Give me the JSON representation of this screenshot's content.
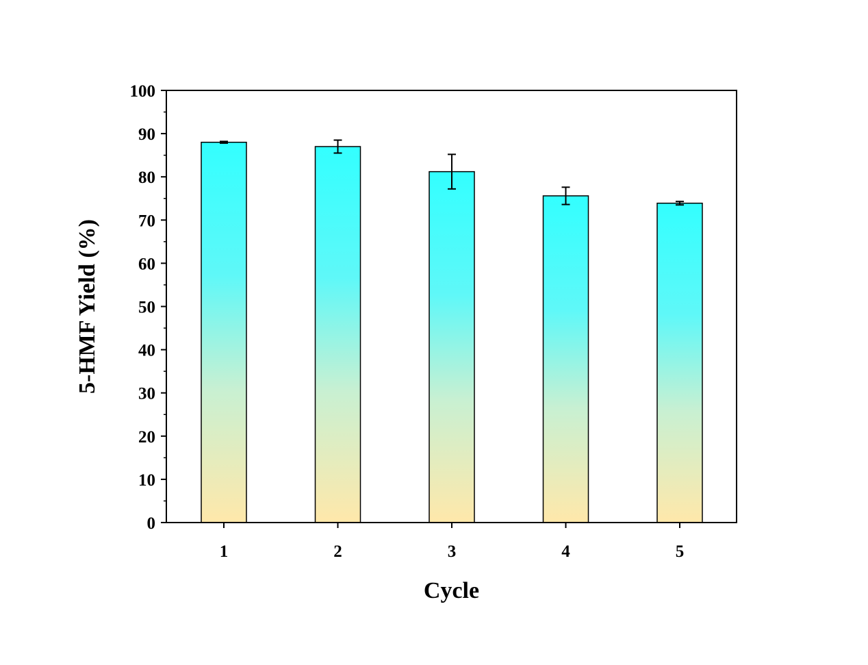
{
  "chart_data": {
    "type": "bar",
    "title": "",
    "xlabel": "Cycle",
    "ylabel": "5-HMF Yield (%)",
    "categories": [
      "1",
      "2",
      "3",
      "4",
      "5"
    ],
    "values": [
      88.0,
      87.0,
      81.2,
      75.6,
      73.9
    ],
    "errors": [
      0.2,
      1.5,
      4.0,
      2.0,
      0.4
    ],
    "ylim": [
      0,
      100
    ],
    "yticks": [
      0,
      10,
      20,
      30,
      40,
      50,
      60,
      70,
      80,
      90,
      100
    ],
    "ytick_labels": [
      "0",
      "10",
      "20",
      "30",
      "40",
      "50",
      "60",
      "70",
      "80",
      "90",
      "100"
    ],
    "grid": false,
    "colors": {
      "bar_top": "#33FFFF",
      "bar_bottom": "#FFE8AA",
      "bar_stroke": "#000000",
      "axis": "#000000"
    }
  }
}
